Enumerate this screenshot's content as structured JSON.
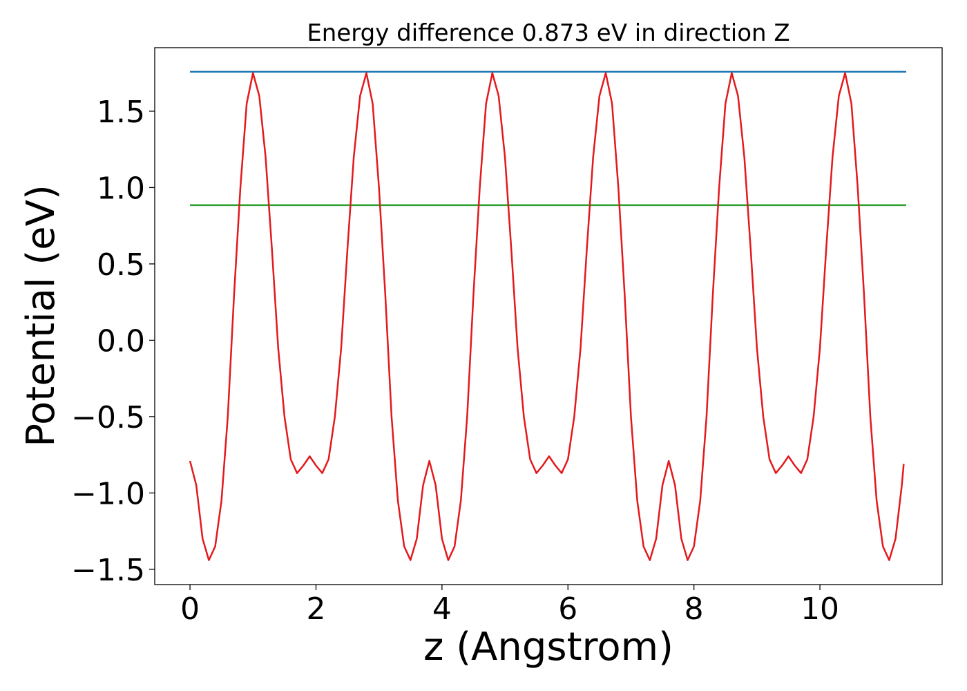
{
  "chart_data": {
    "type": "line",
    "title": "Energy difference 0.873 eV in direction Z",
    "xlabel": "z (Angstrom)",
    "ylabel": "Potential (eV)",
    "xlim": [
      -0.56,
      11.94
    ],
    "ylim": [
      -1.6,
      1.916
    ],
    "xticks": [
      0,
      2,
      4,
      6,
      8,
      10
    ],
    "yticks": [
      {
        "value": -1.5,
        "label": "−1.5"
      },
      {
        "value": -1.0,
        "label": "−1.0"
      },
      {
        "value": -0.5,
        "label": "−0.5"
      },
      {
        "value": 0,
        "label": "0.0"
      },
      0.5,
      {
        "value": 1.0,
        "label": "1.0"
      },
      1.5
    ],
    "series": [
      {
        "color": "#1f77b4",
        "x": [
          0,
          11.37
        ],
        "values": [
          1.758,
          1.758
        ]
      },
      {
        "color": "#2ca02c",
        "x": [
          0,
          11.37
        ],
        "values": [
          0.885,
          0.885
        ]
      },
      {
        "color": "#e3191c",
        "x": [
          0,
          0.1,
          0.2,
          0.3,
          0.4,
          0.5,
          0.6,
          0.7,
          0.8,
          0.9,
          1.0,
          1.1,
          1.2,
          1.3,
          1.4,
          1.5,
          1.6,
          1.7,
          1.8,
          1.9,
          2.0,
          2.1,
          2.2,
          2.3,
          2.4,
          2.5,
          2.6,
          2.7,
          2.8,
          2.9,
          3.0,
          3.1,
          3.2,
          3.3,
          3.4,
          3.5,
          3.6,
          3.7,
          3.8,
          3.9,
          4.0,
          4.1,
          4.2,
          4.3,
          4.4,
          4.5,
          4.6,
          4.7,
          4.8,
          4.9,
          5.0,
          5.1,
          5.2,
          5.3,
          5.4,
          5.5,
          5.6,
          5.7,
          5.8,
          5.9,
          6.0,
          6.1,
          6.2,
          6.3,
          6.4,
          6.5,
          6.6,
          6.7,
          6.8,
          6.9,
          7.0,
          7.1,
          7.2,
          7.3,
          7.4,
          7.5,
          7.6,
          7.7,
          7.8,
          7.9,
          8.0,
          8.1,
          8.2,
          8.3,
          8.4,
          8.5,
          8.6,
          8.7,
          8.8,
          8.9,
          9.0,
          9.1,
          9.2,
          9.3,
          9.4,
          9.5,
          9.6,
          9.7,
          9.8,
          9.9,
          10.0,
          10.1,
          10.2,
          10.3,
          10.4,
          10.5,
          10.6,
          10.7,
          10.8,
          10.9,
          11.0,
          11.1,
          11.2,
          11.3,
          11.33
        ],
        "values": [
          -0.79,
          -0.95,
          -1.3,
          -1.44,
          -1.35,
          -1.05,
          -0.5,
          0.3,
          1.0,
          1.55,
          1.75,
          1.6,
          1.2,
          0.6,
          -0.05,
          -0.5,
          -0.78,
          -0.87,
          -0.82,
          -0.76,
          -0.82,
          -0.87,
          -0.78,
          -0.5,
          -0.05,
          0.6,
          1.2,
          1.6,
          1.75,
          1.55,
          1.0,
          0.3,
          -0.5,
          -1.05,
          -1.35,
          -1.44,
          -1.3,
          -0.95,
          -0.79,
          -0.95,
          -1.3,
          -1.44,
          -1.35,
          -1.05,
          -0.5,
          0.3,
          1.0,
          1.55,
          1.75,
          1.6,
          1.2,
          0.6,
          -0.05,
          -0.5,
          -0.78,
          -0.87,
          -0.82,
          -0.76,
          -0.82,
          -0.87,
          -0.78,
          -0.5,
          -0.05,
          0.6,
          1.2,
          1.6,
          1.75,
          1.55,
          1.0,
          0.3,
          -0.5,
          -1.05,
          -1.35,
          -1.44,
          -1.3,
          -0.95,
          -0.79,
          -0.95,
          -1.3,
          -1.44,
          -1.35,
          -1.05,
          -0.5,
          0.3,
          1.0,
          1.55,
          1.75,
          1.6,
          1.2,
          0.6,
          -0.05,
          -0.5,
          -0.78,
          -0.87,
          -0.82,
          -0.76,
          -0.82,
          -0.87,
          -0.78,
          -0.5,
          -0.05,
          0.6,
          1.2,
          1.6,
          1.75,
          1.55,
          1.0,
          0.3,
          -0.5,
          -1.05,
          -1.35,
          -1.44,
          -1.3,
          -0.95,
          -0.81
        ]
      }
    ]
  }
}
